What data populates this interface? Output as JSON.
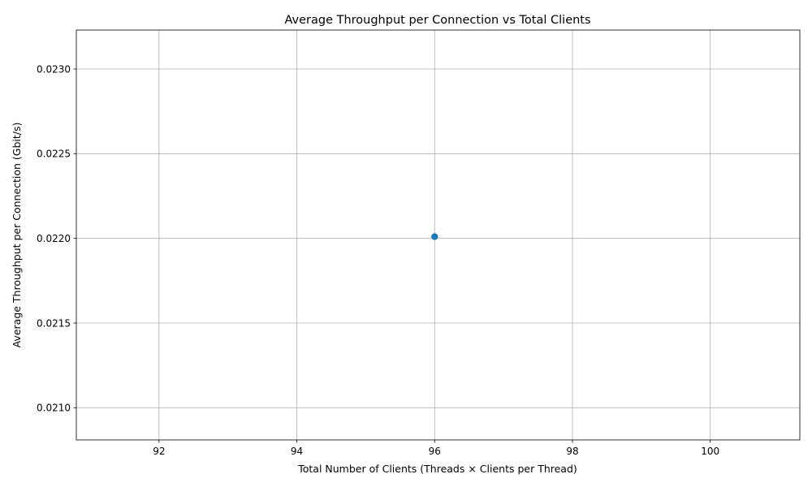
{
  "chart_data": {
    "type": "scatter",
    "title": "Average Throughput per Connection vs Total Clients",
    "xlabel": "Total Number of Clients (Threads × Clients per Thread)",
    "ylabel": "Average Throughput per Connection (Gbit/s)",
    "xlim": [
      90.8,
      101.3
    ],
    "ylim": [
      0.02081,
      0.02323
    ],
    "xticks": [
      92,
      94,
      96,
      98,
      100
    ],
    "xtick_labels": [
      "92",
      "94",
      "96",
      "98",
      "100"
    ],
    "yticks": [
      0.021,
      0.0215,
      0.022,
      0.0225,
      0.023
    ],
    "ytick_labels": [
      "0.0210",
      "0.0215",
      "0.0220",
      "0.0225",
      "0.0230"
    ],
    "grid": true,
    "series": [
      {
        "name": "throughput",
        "color": "#1f77b4",
        "points": [
          {
            "x": 96,
            "y": 0.02201
          }
        ]
      }
    ]
  }
}
